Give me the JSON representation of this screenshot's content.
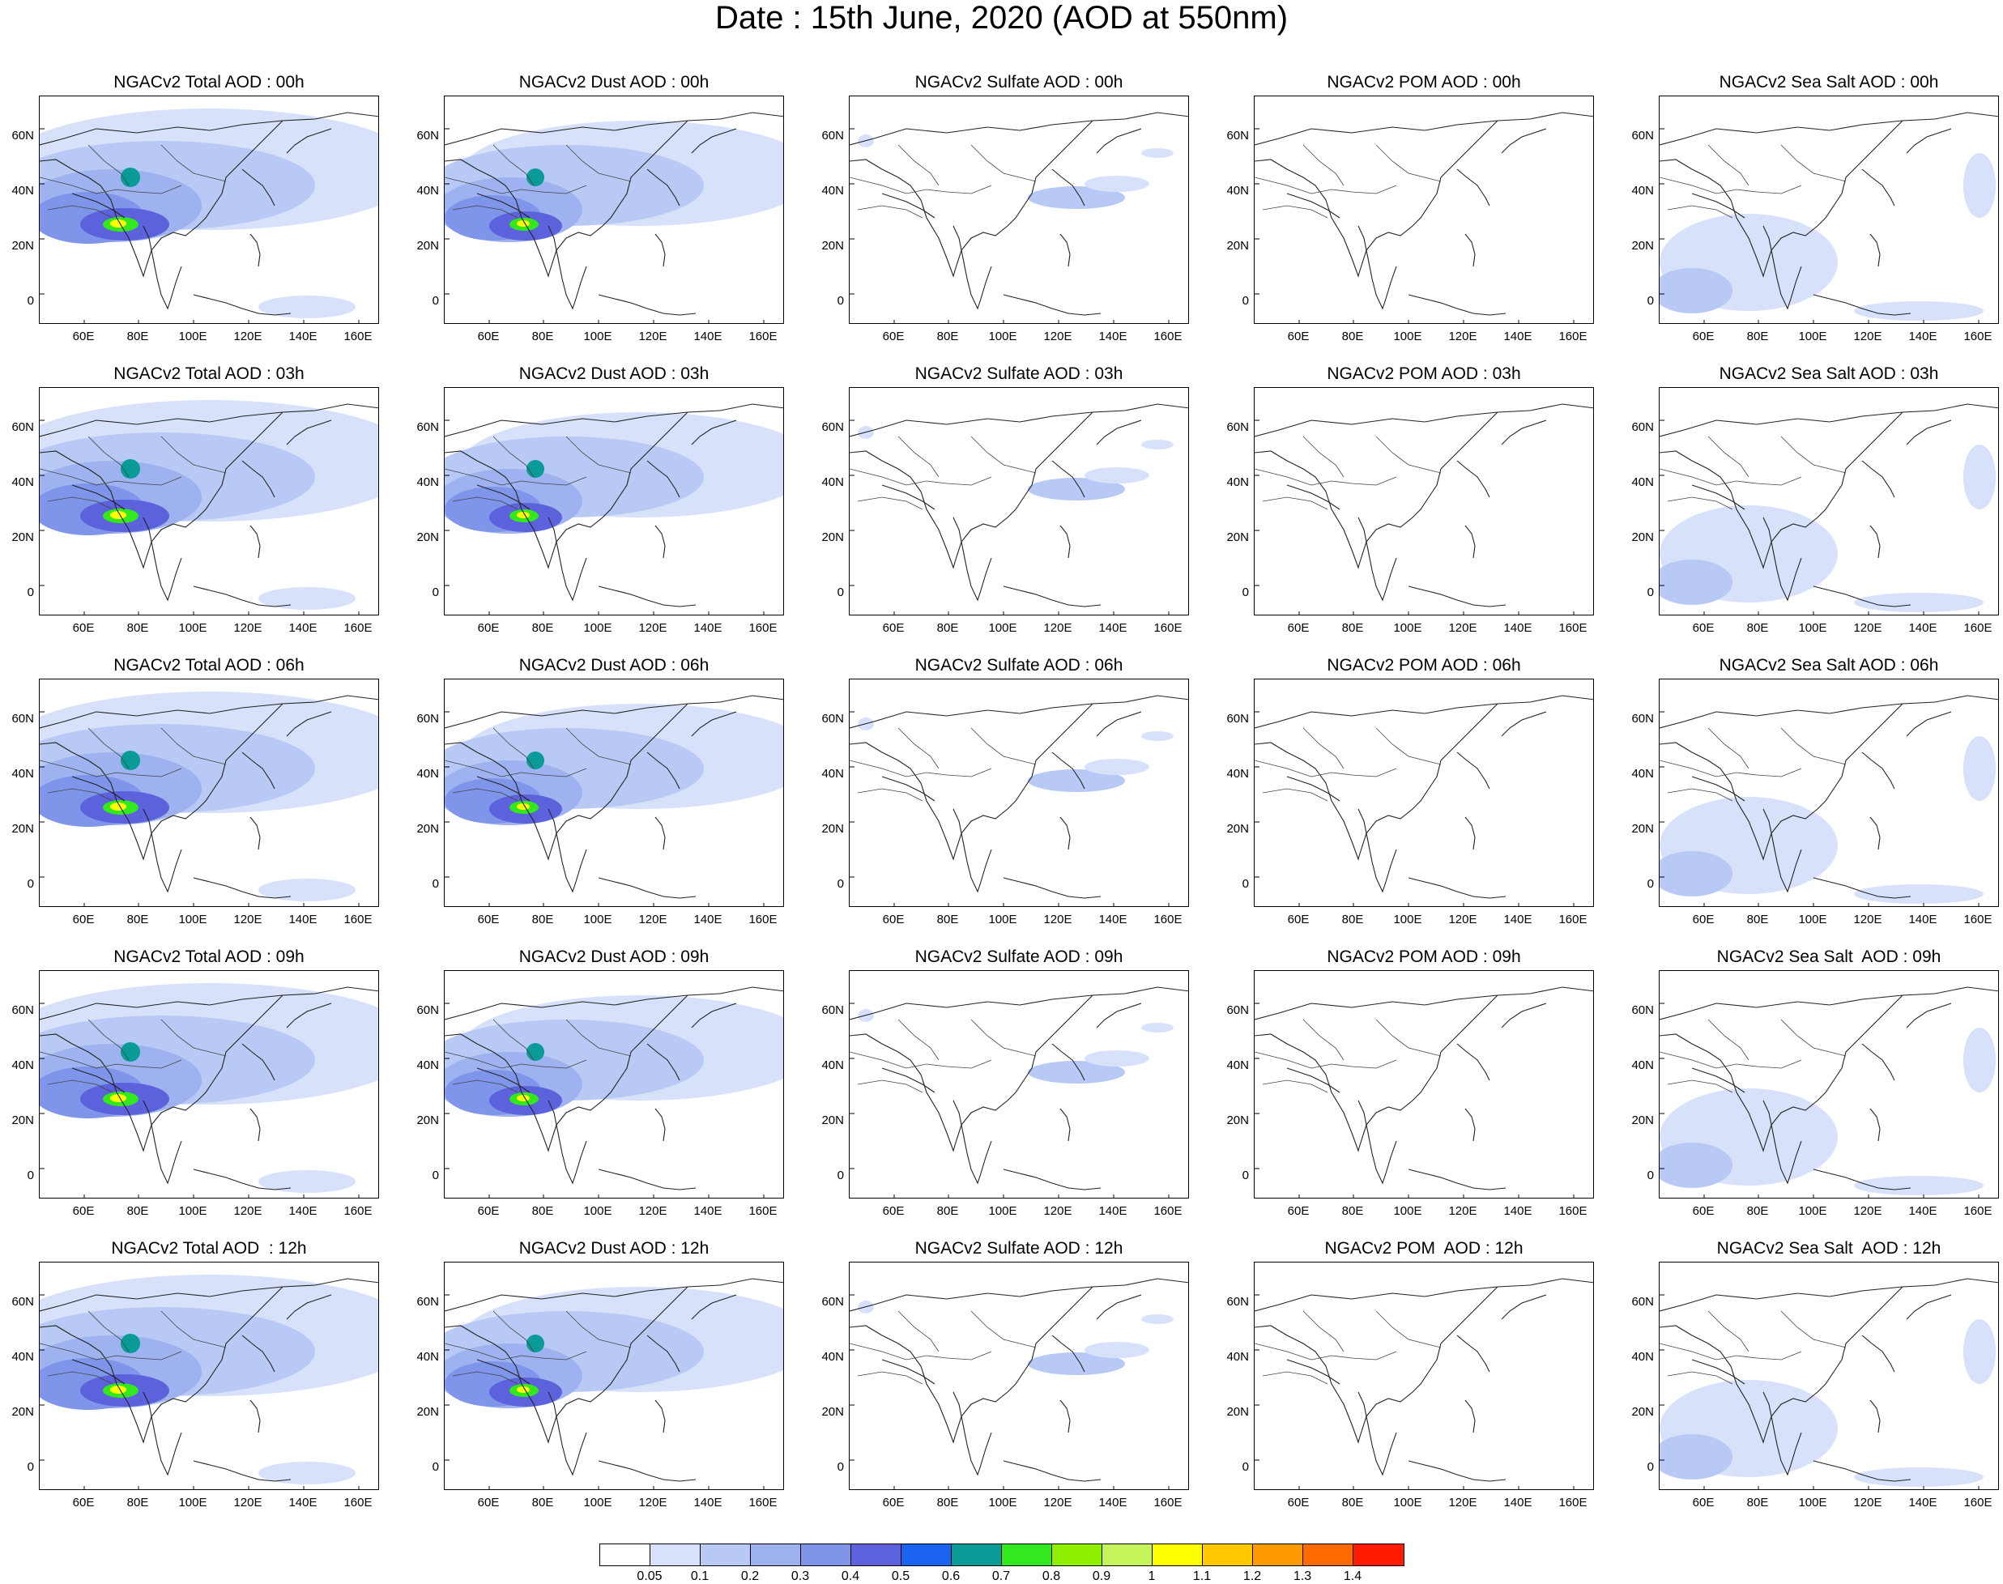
{
  "main_title": "Date : 15th June, 2020 (AOD at 550nm)",
  "lat_ticks": [
    "60N",
    "40N",
    "20N",
    "0"
  ],
  "lon_ticks": [
    "60E",
    "80E",
    "100E",
    "120E",
    "140E",
    "160E"
  ],
  "rows": [
    {
      "hour": "00h",
      "titles": [
        "NGACv2 Total AOD : 00h",
        "NGACv2 Dust AOD : 00h",
        "NGACv2 Sulfate AOD : 00h",
        "NGACv2 POM AOD : 00h",
        "NGACv2 Sea Salt AOD : 00h"
      ]
    },
    {
      "hour": "03h",
      "titles": [
        "NGACv2 Total AOD : 03h",
        "NGACv2 Dust AOD : 03h",
        "NGACv2 Sulfate AOD : 03h",
        "NGACv2 POM AOD : 03h",
        "NGACv2 Sea Salt AOD : 03h"
      ]
    },
    {
      "hour": "06h",
      "titles": [
        "NGACv2 Total AOD : 06h",
        "NGACv2 Dust AOD : 06h",
        "NGACv2 Sulfate AOD : 06h",
        "NGACv2 POM AOD : 06h",
        "NGACv2 Sea Salt AOD : 06h"
      ]
    },
    {
      "hour": "09h",
      "titles": [
        "NGACv2 Total AOD : 09h",
        "NGACv2 Dust AOD : 09h",
        "NGACv2 Sulfate AOD : 09h",
        "NGACv2 POM AOD : 09h",
        "NGACv2 Sea Salt  AOD : 09h"
      ]
    },
    {
      "hour": "12h",
      "titles": [
        "NGACv2 Total AOD  : 12h",
        "NGACv2 Dust AOD : 12h",
        "NGACv2 Sulfate AOD : 12h",
        "NGACv2 POM  AOD : 12h",
        "NGACv2 Sea Salt  AOD : 12h"
      ]
    }
  ],
  "colorbar": {
    "colors": [
      "#ffffff",
      "#d7e1fa",
      "#b9c9f5",
      "#9db2ef",
      "#7f95ea",
      "#5b62db",
      "#1a64f0",
      "#0a9a98",
      "#33e81e",
      "#8ff000",
      "#c4f55a",
      "#ffff00",
      "#ffc800",
      "#ff9a00",
      "#ff6a00",
      "#ff1a00"
    ],
    "labels": [
      "0.05",
      "0.1",
      "0.2",
      "0.3",
      "0.4",
      "0.5",
      "0.6",
      "0.7",
      "0.8",
      "0.9",
      "1",
      "1.1",
      "1.2",
      "1.3",
      "1.4"
    ]
  }
}
